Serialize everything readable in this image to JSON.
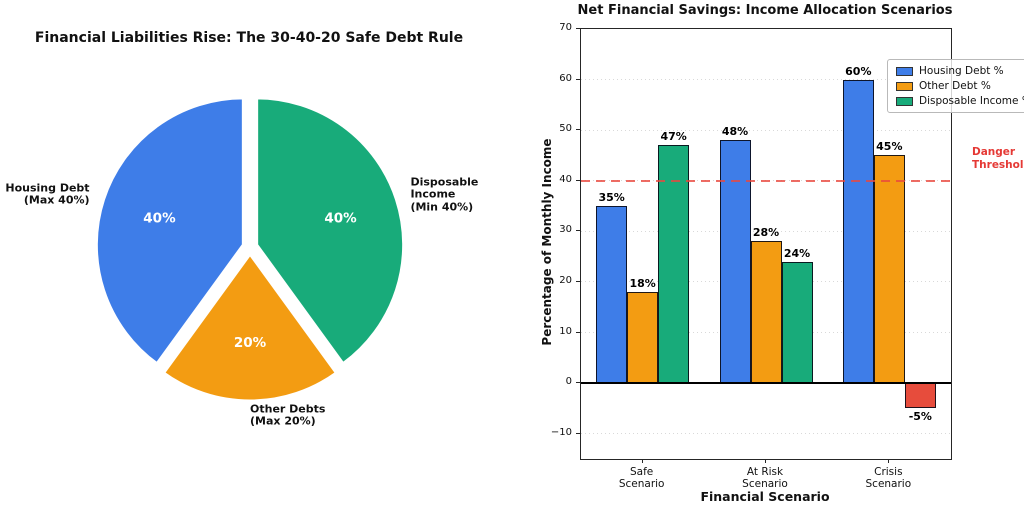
{
  "colors": {
    "housing_blue": "#3E7DE8",
    "other_orange": "#F39C12",
    "disposable_green": "#18AB7A",
    "negative_red": "#E74C3C",
    "threshold_red": "#E9483E",
    "danger_text_red": "#E53935"
  },
  "chart_data": [
    {
      "type": "pie",
      "title": "Financial Liabilities Rise: The 30-40-20 Safe Debt Rule",
      "start_angle": 90,
      "counterclock": true,
      "explode": 0.05,
      "slices": [
        {
          "label": "Housing Debt\n(Max 40%)",
          "value": 40,
          "pct_label": "40%",
          "color": "#3E7DE8"
        },
        {
          "label": "Other Debts\n(Max 20%)",
          "value": 20,
          "pct_label": "20%",
          "color": "#F39C12"
        },
        {
          "label": "Disposable Income\n(Min 40%)",
          "value": 40,
          "pct_label": "40%",
          "color": "#18AB7A"
        }
      ]
    },
    {
      "type": "bar",
      "title": "Net Financial Savings: Income Allocation Scenarios",
      "xlabel": "Financial Scenario",
      "ylabel": "Percentage of Monthly Income",
      "categories": [
        "Safe\nScenario",
        "At Risk\nScenario",
        "Crisis\nScenario"
      ],
      "series": [
        {
          "name": "Housing Debt %",
          "color": "#3E7DE8",
          "values": [
            35,
            48,
            60
          ]
        },
        {
          "name": "Other Debt %",
          "color": "#F39C12",
          "values": [
            18,
            28,
            45
          ]
        },
        {
          "name": "Disposable Income %",
          "color": "#18AB7A",
          "negative_color": "#E74C3C",
          "values": [
            47,
            24,
            -5
          ]
        }
      ],
      "bar_value_labels": [
        [
          "35%",
          "48%",
          "60%"
        ],
        [
          "18%",
          "28%",
          "45%"
        ],
        [
          "47%",
          "24%",
          "-5%"
        ]
      ],
      "ylim": [
        -15,
        70
      ],
      "yticks": [
        -10,
        0,
        10,
        20,
        30,
        40,
        50,
        60,
        70
      ],
      "grid": "dotted-horizontal",
      "zero_line": 0,
      "threshold": {
        "value": 40,
        "label": "Danger\nThreshold",
        "color": "#E53935"
      },
      "legend_position": "upper-right"
    }
  ]
}
